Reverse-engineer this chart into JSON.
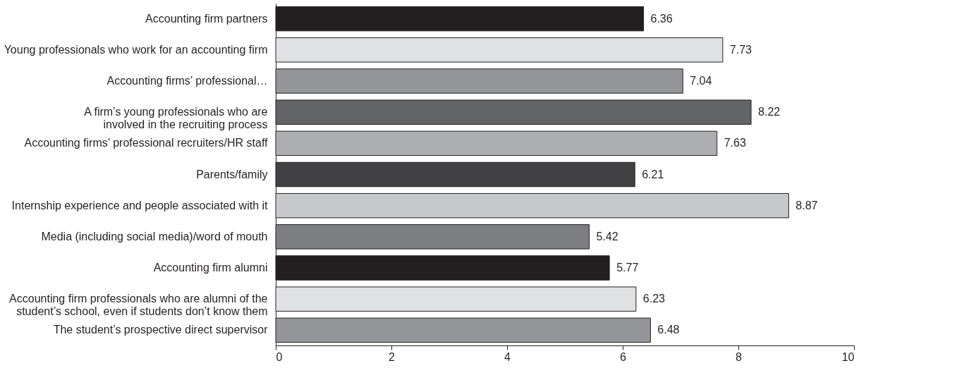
{
  "chart_data": {
    "type": "bar",
    "orientation": "horizontal",
    "categories": [
      "Accounting firm partners",
      "Young professionals who work for an accounting firm",
      "Accounting firms’ professional…",
      "A firm’s young professionals who are involved in the recruiting process",
      "Accounting firms’ professional recruiters/HR staff",
      "Parents/family",
      "Internship experience and people associated with it",
      "Media (including social media)/word of mouth",
      "Accounting firm alumni",
      "Accounting firm professionals who are alumni of the student’s school, even if students don’t know them",
      "The student’s prospective direct supervisor"
    ],
    "values": [
      6.36,
      7.73,
      7.04,
      8.22,
      7.63,
      6.21,
      8.87,
      5.42,
      5.77,
      6.23,
      6.48
    ],
    "colors": [
      "#231f20",
      "#e0e1e2",
      "#939598",
      "#636466",
      "#adaeb0",
      "#414042",
      "#c7c8ca",
      "#7d7e81",
      "#231f20",
      "#e0e1e2",
      "#939598"
    ],
    "xlim": [
      0,
      10
    ],
    "xticks": [
      0,
      2,
      4,
      6,
      8,
      10
    ],
    "data_labels": true
  }
}
